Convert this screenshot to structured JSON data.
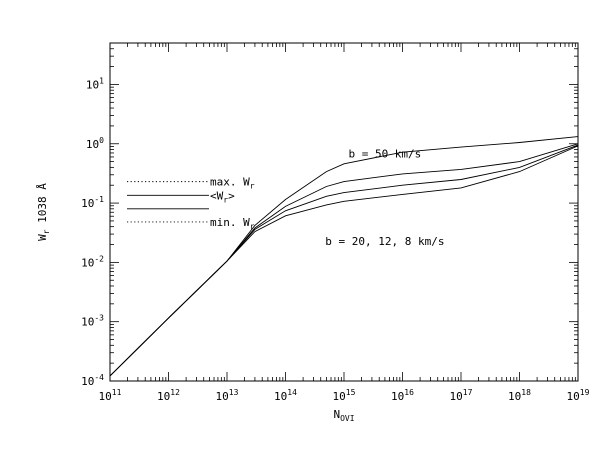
{
  "chart_data": {
    "type": "line",
    "title": "",
    "xlabel": {
      "main": "N",
      "sub": "OVI"
    },
    "ylabel": {
      "main": "W",
      "sub": "r",
      "rest": " 1038 Å"
    },
    "xscale": "log",
    "yscale": "log",
    "xlim": [
      100000000000.0,
      1e+19
    ],
    "ylim": [
      0.0001,
      50
    ],
    "grid": false,
    "x_ticks": [
      {
        "base": "10",
        "exp": "11"
      },
      {
        "base": "10",
        "exp": "12"
      },
      {
        "base": "10",
        "exp": "13"
      },
      {
        "base": "10",
        "exp": "14"
      },
      {
        "base": "10",
        "exp": "15"
      },
      {
        "base": "10",
        "exp": "16"
      },
      {
        "base": "10",
        "exp": "17"
      },
      {
        "base": "10",
        "exp": "18"
      },
      {
        "base": "10",
        "exp": "19"
      }
    ],
    "y_ticks": [
      {
        "base": "10",
        "exp": "-4"
      },
      {
        "base": "10",
        "exp": "-3"
      },
      {
        "base": "10",
        "exp": "-2"
      },
      {
        "base": "10",
        "exp": "-1"
      },
      {
        "base": "10",
        "exp": "0"
      },
      {
        "base": "10",
        "exp": "1"
      }
    ],
    "series": [
      {
        "x": [
          100000000000.0,
          1000000000000.0,
          10000000000000.0,
          30000000000000.0,
          100000000000000.0,
          500000000000000.0,
          1000000000000000.0,
          1e+16,
          1e+17,
          1e+18,
          1e+19
        ],
        "y": [
          0.000122,
          0.00115,
          0.0105,
          0.042,
          0.115,
          0.34,
          0.46,
          0.72,
          0.88,
          1.05,
          1.32
        ]
      },
      {
        "x": [
          100000000000.0,
          1000000000000.0,
          10000000000000.0,
          30000000000000.0,
          100000000000000.0,
          500000000000000.0,
          1000000000000000.0,
          1e+16,
          1e+17,
          1e+18,
          1e+19
        ],
        "y": [
          0.000122,
          0.00115,
          0.0105,
          0.038,
          0.088,
          0.19,
          0.23,
          0.31,
          0.37,
          0.5,
          1.0
        ]
      },
      {
        "x": [
          100000000000.0,
          1000000000000.0,
          10000000000000.0,
          30000000000000.0,
          100000000000000.0,
          500000000000000.0,
          1000000000000000.0,
          1e+16,
          1e+17,
          1e+18,
          1e+19
        ],
        "y": [
          0.000122,
          0.00115,
          0.0105,
          0.036,
          0.074,
          0.13,
          0.15,
          0.2,
          0.25,
          0.4,
          0.95
        ]
      },
      {
        "x": [
          100000000000.0,
          1000000000000.0,
          10000000000000.0,
          30000000000000.0,
          100000000000000.0,
          500000000000000.0,
          1000000000000000.0,
          1e+16,
          1e+17,
          1e+18,
          1e+19
        ],
        "y": [
          0.000122,
          0.00115,
          0.0105,
          0.033,
          0.061,
          0.093,
          0.107,
          0.14,
          0.18,
          0.34,
          0.92
        ]
      }
    ],
    "annotations": [
      {
        "text": "b = 50 km/s",
        "x": 5000000000000000.0,
        "y": 0.69
      },
      {
        "text": "b = 20, 12, 8 km/s",
        "x": 5000000000000000.0,
        "y": 0.023
      }
    ],
    "legend": {
      "placement": "left, middle",
      "entries": [
        {
          "label": "max. W",
          "sub": "r",
          "after": "",
          "style": "dotted",
          "y": 0.23
        },
        {
          "label": "<W",
          "sub": "r",
          "after": ">",
          "style": "solid",
          "y": 0.135
        },
        {
          "label": "",
          "sub": "",
          "after": "",
          "style": "solid",
          "y": 0.08
        },
        {
          "label": "min. W",
          "sub": "r",
          "after": "",
          "style": "dotted",
          "y": 0.048
        }
      ]
    }
  }
}
